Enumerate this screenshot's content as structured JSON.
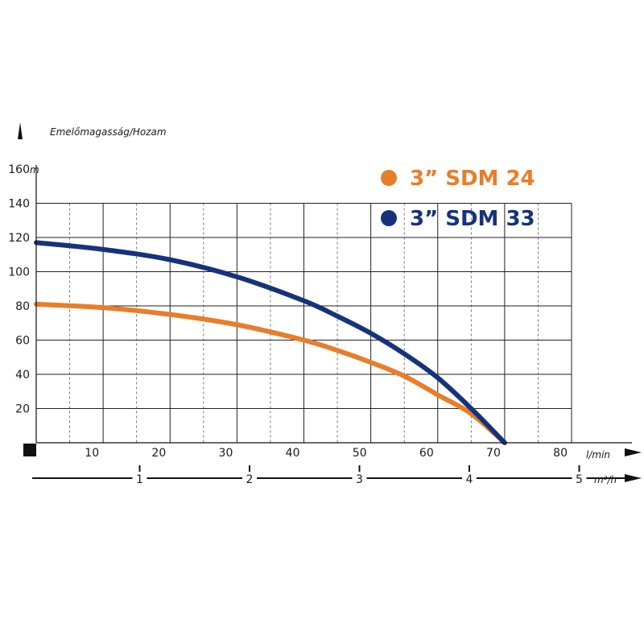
{
  "chart_data": {
    "type": "line",
    "title": "Emelőmagasság/Hozam",
    "ylabel": "m",
    "xlabel": "l/min",
    "x2label": "m³/h",
    "xlim": [
      0,
      80
    ],
    "ylim": [
      0,
      160
    ],
    "x_ticks": [
      10,
      20,
      30,
      40,
      50,
      60,
      70,
      80
    ],
    "y_ticks": [
      20,
      40,
      60,
      80,
      100,
      120,
      140,
      160
    ],
    "x2_ticks": [
      1,
      2,
      3,
      4,
      5
    ],
    "grid": true,
    "legend_position": "top-right",
    "series": [
      {
        "name": "3” SDM 24",
        "color": "#e87d2a",
        "x": [
          0,
          10,
          20,
          30,
          40,
          45,
          50,
          55,
          60,
          65,
          70
        ],
        "y": [
          81,
          79,
          75,
          69,
          60,
          54,
          47,
          39,
          28,
          17,
          0
        ]
      },
      {
        "name": "3” SDM 33",
        "color": "#15337a",
        "x": [
          0,
          10,
          20,
          30,
          40,
          45,
          50,
          55,
          60,
          65,
          70
        ],
        "y": [
          117,
          113,
          107,
          97,
          83,
          74,
          64,
          52,
          38,
          20,
          0
        ]
      }
    ]
  }
}
